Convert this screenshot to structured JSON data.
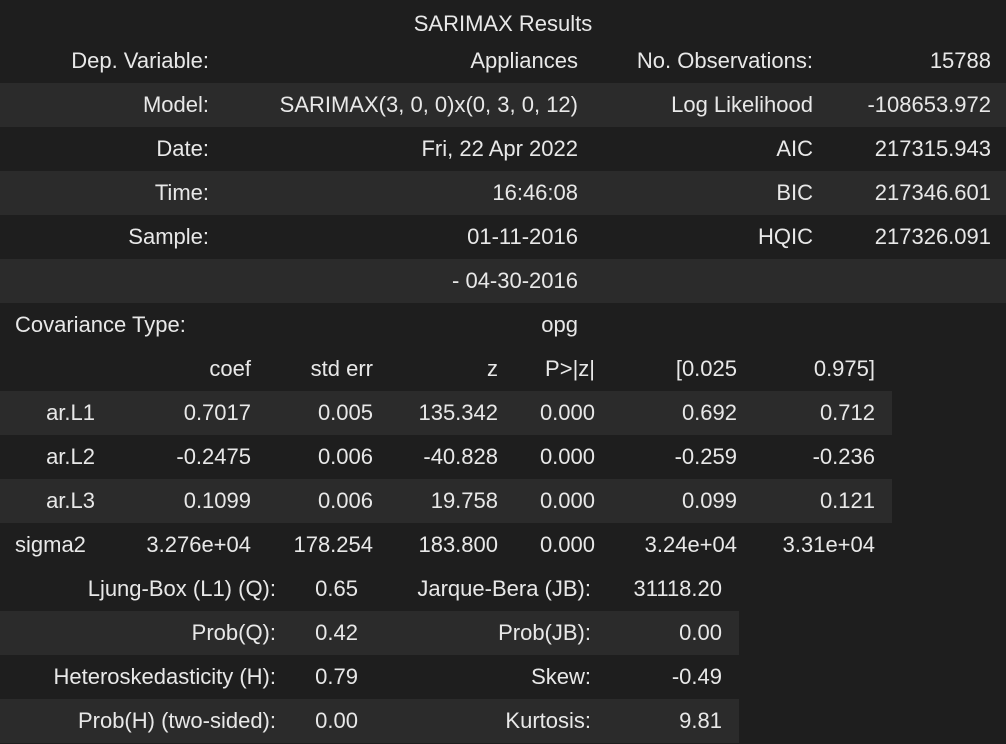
{
  "caption": "SARIMAX Results",
  "info": [
    {
      "l1": "Dep. Variable:",
      "v1": "Appliances",
      "l2": "No. Observations:",
      "v2": "15788"
    },
    {
      "l1": "Model:",
      "v1": "SARIMAX(3, 0, 0)x(0, 3, 0, 12)",
      "l2": "Log Likelihood",
      "v2": "-108653.972"
    },
    {
      "l1": "Date:",
      "v1": "Fri, 22 Apr 2022",
      "l2": "AIC",
      "v2": "217315.943"
    },
    {
      "l1": "Time:",
      "v1": "16:46:08",
      "l2": "BIC",
      "v2": "217346.601"
    },
    {
      "l1": "Sample:",
      "v1": "01-11-2016",
      "l2": "HQIC",
      "v2": "217326.091"
    },
    {
      "l1": "",
      "v1": "- 04-30-2016",
      "l2": "",
      "v2": ""
    }
  ],
  "covariance": {
    "label": "Covariance Type:",
    "value": "opg"
  },
  "coef_header": [
    "",
    "coef",
    "std err",
    "z",
    "P>|z|",
    "[0.025",
    "0.975]"
  ],
  "coef_rows": [
    [
      "ar.L1",
      "0.7017",
      "0.005",
      "135.342",
      "0.000",
      "0.692",
      "0.712"
    ],
    [
      "ar.L2",
      "-0.2475",
      "0.006",
      "-40.828",
      "0.000",
      "-0.259",
      "-0.236"
    ],
    [
      "ar.L3",
      "0.1099",
      "0.006",
      "19.758",
      "0.000",
      "0.099",
      "0.121"
    ],
    [
      "sigma2",
      "3.276e+04",
      "178.254",
      "183.800",
      "0.000",
      "3.24e+04",
      "3.31e+04"
    ]
  ],
  "diag_rows": [
    [
      "Ljung-Box (L1) (Q):",
      "0.65",
      "Jarque-Bera (JB):",
      "31118.20"
    ],
    [
      "Prob(Q):",
      "0.42",
      "Prob(JB):",
      "0.00"
    ],
    [
      "Heteroskedasticity (H):",
      "0.79",
      "Skew:",
      "-0.49"
    ],
    [
      "Prob(H) (two-sided):",
      "0.00",
      "Kurtosis:",
      "9.81"
    ]
  ]
}
